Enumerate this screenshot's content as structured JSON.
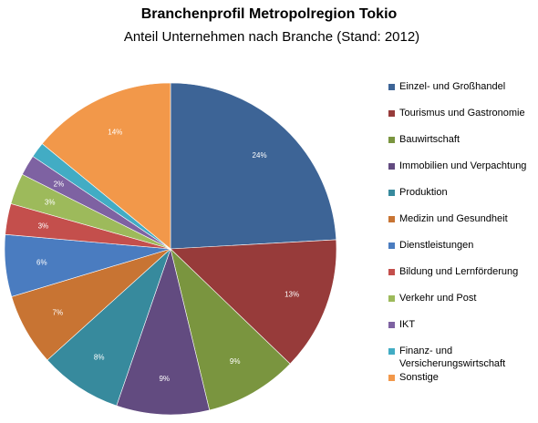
{
  "chart_data": {
    "type": "pie",
    "title": "Branchenprofil Metropolregion Tokio",
    "subtitle": "Anteil Unternehmen nach Branche (Stand: 2012)",
    "legend_position": "right",
    "start_angle_deg": 0,
    "direction": "clockwise",
    "slices": [
      {
        "label": "Einzel- und Großhandel",
        "value": 24,
        "value_label": "24%",
        "color": "#3D6496"
      },
      {
        "label": "Tourismus und Gastronomie",
        "value": 13,
        "value_label": "13%",
        "color": "#973B3A"
      },
      {
        "label": "Bauwirtschaft",
        "value": 9,
        "value_label": "9%",
        "color": "#7A953F"
      },
      {
        "label": "Immobilien und Verpachtung",
        "value": 9,
        "value_label": "9%",
        "color": "#624B80"
      },
      {
        "label": "Produktion",
        "value": 8,
        "value_label": "8%",
        "color": "#378A9D"
      },
      {
        "label": "Medizin und Gesundheit",
        "value": 7,
        "value_label": "7%",
        "color": "#C87433"
      },
      {
        "label": "Dienstleistungen",
        "value": 6,
        "value_label": "6%",
        "color": "#4A7CC0"
      },
      {
        "label": "Bildung und Lernförderung",
        "value": 3,
        "value_label": "3%",
        "color": "#C44F4C"
      },
      {
        "label": "Verkehr und Post",
        "value": 3,
        "value_label": "3%",
        "color": "#9DBA5B"
      },
      {
        "label": "IKT",
        "value": 2,
        "value_label": "2%",
        "color": "#7E62A2"
      },
      {
        "label": "Finanz- und Versicherungswirtschaft",
        "value": 1.5,
        "value_label": "",
        "color": "#42ACC4"
      },
      {
        "label": "Sonstige",
        "value": 14,
        "value_label": "14%",
        "color": "#F2984A"
      }
    ]
  }
}
